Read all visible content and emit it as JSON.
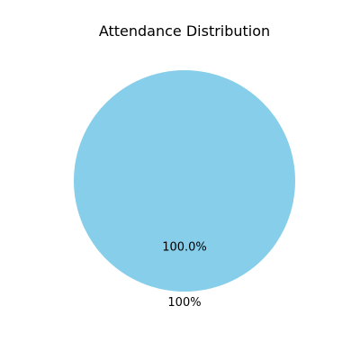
{
  "chart_data": {
    "type": "pie",
    "title": "Attendance Distribution",
    "slices": [
      {
        "label": "100%",
        "value": 100.0,
        "percent_label": "100.0%",
        "color": "#87CEEB"
      }
    ],
    "legend": "none"
  }
}
